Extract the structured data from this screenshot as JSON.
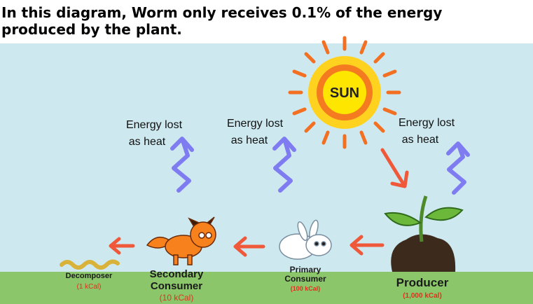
{
  "header": {
    "title": "In this diagram, Worm only receives 0.1% of the energy produced by the plant."
  },
  "sun": {
    "label": "SUN"
  },
  "heat_labels": [
    {
      "lines": [
        "Energy lost",
        "as heat"
      ]
    },
    {
      "lines": [
        "Energy lost",
        "as heat"
      ]
    },
    {
      "lines": [
        "Energy lost",
        "as heat"
      ]
    }
  ],
  "organisms": [
    {
      "name_lines": [
        "Decomposer"
      ],
      "energy": "(1 kCal)"
    },
    {
      "name_lines": [
        "Secondary",
        "Consumer"
      ],
      "energy": "(10 kCal)"
    },
    {
      "name_lines": [
        "Primary",
        "Consumer"
      ],
      "energy": "(100 kCal)"
    },
    {
      "name_lines": [
        "Producer"
      ],
      "energy": "(1,000 kCal)"
    }
  ]
}
